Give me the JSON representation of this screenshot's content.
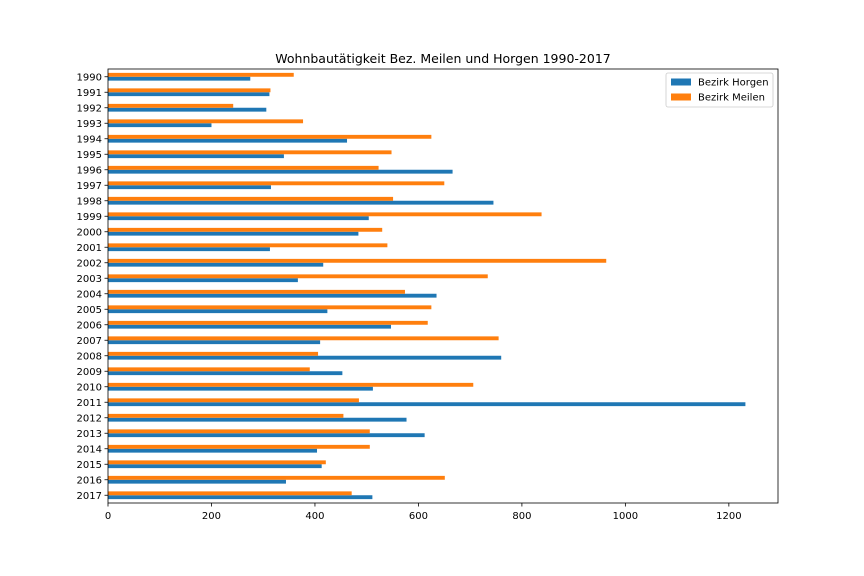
{
  "chart_data": {
    "type": "bar",
    "orientation": "horizontal",
    "title": "Wohnbautätigkeit Bez. Meilen und Horgen 1990-2017",
    "xlabel": "",
    "ylabel": "",
    "xlim": [
      0,
      1295
    ],
    "xticks": [
      0,
      200,
      400,
      600,
      800,
      1000,
      1200
    ],
    "grid": false,
    "legend_position": "top-right",
    "categories": [
      "1990",
      "1991",
      "1992",
      "1993",
      "1994",
      "1995",
      "1996",
      "1997",
      "1998",
      "1999",
      "2000",
      "2001",
      "2002",
      "2003",
      "2004",
      "2005",
      "2006",
      "2007",
      "2008",
      "2009",
      "2010",
      "2011",
      "2012",
      "2013",
      "2014",
      "2015",
      "2016",
      "2017"
    ],
    "series": [
      {
        "name": "Bezirk Horgen",
        "color": "#1f77b4",
        "values": [
          275,
          312,
          306,
          200,
          462,
          340,
          666,
          315,
          745,
          504,
          484,
          313,
          416,
          367,
          635,
          424,
          547,
          410,
          760,
          453,
          512,
          1232,
          577,
          612,
          404,
          413,
          344,
          511
        ]
      },
      {
        "name": "Bezirk Meilen",
        "color": "#ff7f0e",
        "values": [
          359,
          314,
          242,
          377,
          625,
          548,
          523,
          650,
          551,
          838,
          530,
          540,
          963,
          734,
          574,
          625,
          618,
          755,
          406,
          390,
          706,
          485,
          455,
          506,
          506,
          421,
          651,
          471
        ]
      }
    ]
  }
}
